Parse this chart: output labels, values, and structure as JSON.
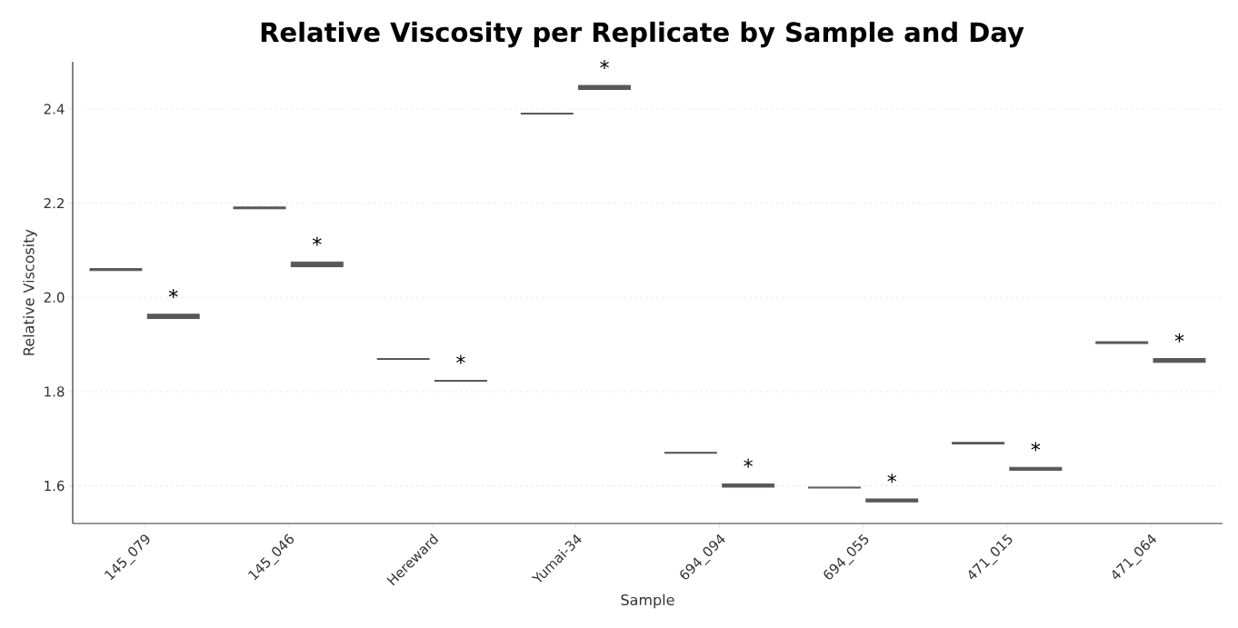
{
  "chart_data": {
    "type": "box",
    "title": "Relative Viscosity per Replicate by Sample and Day",
    "xlabel": "Sample",
    "ylabel": "Relative Viscosity",
    "categories": [
      "145_079",
      "145_046",
      "Hereward",
      "Yumai-34",
      "694_094",
      "694_055",
      "471_015",
      "471_064"
    ],
    "series": [
      {
        "color": "#595959",
        "boxes": [
          {
            "low": 2.057,
            "q1": 2.057,
            "median": 2.059,
            "q3": 2.061,
            "high": 2.061
          },
          {
            "low": 2.188,
            "q1": 2.188,
            "median": 2.19,
            "q3": 2.192,
            "high": 2.192
          },
          {
            "low": 1.868,
            "q1": 1.868,
            "median": 1.869,
            "q3": 1.87,
            "high": 1.87
          },
          {
            "low": 2.389,
            "q1": 2.389,
            "median": 2.39,
            "q3": 2.391,
            "high": 2.391
          },
          {
            "low": 1.669,
            "q1": 1.669,
            "median": 1.67,
            "q3": 1.671,
            "high": 1.671
          },
          {
            "low": 1.595,
            "q1": 1.595,
            "median": 1.596,
            "q3": 1.597,
            "high": 1.597
          },
          {
            "low": 1.689,
            "q1": 1.689,
            "median": 1.69,
            "q3": 1.692,
            "high": 1.692
          },
          {
            "low": 1.902,
            "q1": 1.902,
            "median": 1.904,
            "q3": 1.906,
            "high": 1.906
          }
        ]
      },
      {
        "color": "#595959",
        "boxes": [
          {
            "low": 1.955,
            "q1": 1.955,
            "median": 1.96,
            "q3": 1.964,
            "high": 1.964
          },
          {
            "low": 2.065,
            "q1": 2.065,
            "median": 2.07,
            "q3": 2.075,
            "high": 2.075
          },
          {
            "low": 1.822,
            "q1": 1.822,
            "median": 1.823,
            "q3": 1.824,
            "high": 1.824
          },
          {
            "low": 2.441,
            "q1": 2.441,
            "median": 2.446,
            "q3": 2.45,
            "high": 2.45
          },
          {
            "low": 1.597,
            "q1": 1.597,
            "median": 1.6,
            "q3": 1.604,
            "high": 1.604
          },
          {
            "low": 1.566,
            "q1": 1.566,
            "median": 1.569,
            "q3": 1.572,
            "high": 1.572
          },
          {
            "low": 1.633,
            "q1": 1.633,
            "median": 1.636,
            "q3": 1.639,
            "high": 1.639
          },
          {
            "low": 1.862,
            "q1": 1.862,
            "median": 1.866,
            "q3": 1.87,
            "high": 1.87
          }
        ]
      }
    ],
    "annotations": [
      "*",
      "*",
      "*",
      "*",
      "*",
      "*",
      "*",
      "*"
    ],
    "ylim": [
      1.52,
      2.5
    ],
    "yticks": [
      1.6,
      1.8,
      {
        "value": 2.0,
        "label": "2.0"
      },
      2.2,
      2.4
    ],
    "grid": "y"
  }
}
